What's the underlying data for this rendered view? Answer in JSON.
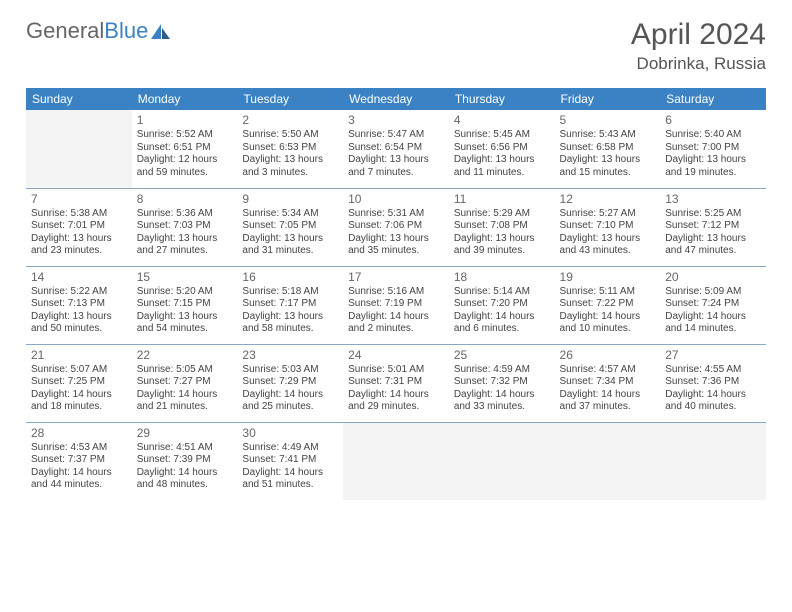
{
  "brand": {
    "part1": "General",
    "part2": "Blue"
  },
  "title": "April 2024",
  "location": "Dobrinka, Russia",
  "colors": {
    "header_bg": "#3b82c4",
    "header_text": "#ffffff",
    "border": "#8aa8c2",
    "daynum": "#666666",
    "info_text": "#444444",
    "empty_bg": "#f4f4f4",
    "page_bg": "#ffffff",
    "logo_gray": "#666666",
    "logo_blue": "#3b82c4"
  },
  "weekdays": [
    "Sunday",
    "Monday",
    "Tuesday",
    "Wednesday",
    "Thursday",
    "Friday",
    "Saturday"
  ],
  "weeks": [
    [
      {
        "empty": true
      },
      {
        "d": "1",
        "sr": "5:52 AM",
        "ss": "6:51 PM",
        "dl": "12 hours and 59 minutes."
      },
      {
        "d": "2",
        "sr": "5:50 AM",
        "ss": "6:53 PM",
        "dl": "13 hours and 3 minutes."
      },
      {
        "d": "3",
        "sr": "5:47 AM",
        "ss": "6:54 PM",
        "dl": "13 hours and 7 minutes."
      },
      {
        "d": "4",
        "sr": "5:45 AM",
        "ss": "6:56 PM",
        "dl": "13 hours and 11 minutes."
      },
      {
        "d": "5",
        "sr": "5:43 AM",
        "ss": "6:58 PM",
        "dl": "13 hours and 15 minutes."
      },
      {
        "d": "6",
        "sr": "5:40 AM",
        "ss": "7:00 PM",
        "dl": "13 hours and 19 minutes."
      }
    ],
    [
      {
        "d": "7",
        "sr": "5:38 AM",
        "ss": "7:01 PM",
        "dl": "13 hours and 23 minutes."
      },
      {
        "d": "8",
        "sr": "5:36 AM",
        "ss": "7:03 PM",
        "dl": "13 hours and 27 minutes."
      },
      {
        "d": "9",
        "sr": "5:34 AM",
        "ss": "7:05 PM",
        "dl": "13 hours and 31 minutes."
      },
      {
        "d": "10",
        "sr": "5:31 AM",
        "ss": "7:06 PM",
        "dl": "13 hours and 35 minutes."
      },
      {
        "d": "11",
        "sr": "5:29 AM",
        "ss": "7:08 PM",
        "dl": "13 hours and 39 minutes."
      },
      {
        "d": "12",
        "sr": "5:27 AM",
        "ss": "7:10 PM",
        "dl": "13 hours and 43 minutes."
      },
      {
        "d": "13",
        "sr": "5:25 AM",
        "ss": "7:12 PM",
        "dl": "13 hours and 47 minutes."
      }
    ],
    [
      {
        "d": "14",
        "sr": "5:22 AM",
        "ss": "7:13 PM",
        "dl": "13 hours and 50 minutes."
      },
      {
        "d": "15",
        "sr": "5:20 AM",
        "ss": "7:15 PM",
        "dl": "13 hours and 54 minutes."
      },
      {
        "d": "16",
        "sr": "5:18 AM",
        "ss": "7:17 PM",
        "dl": "13 hours and 58 minutes."
      },
      {
        "d": "17",
        "sr": "5:16 AM",
        "ss": "7:19 PM",
        "dl": "14 hours and 2 minutes."
      },
      {
        "d": "18",
        "sr": "5:14 AM",
        "ss": "7:20 PM",
        "dl": "14 hours and 6 minutes."
      },
      {
        "d": "19",
        "sr": "5:11 AM",
        "ss": "7:22 PM",
        "dl": "14 hours and 10 minutes."
      },
      {
        "d": "20",
        "sr": "5:09 AM",
        "ss": "7:24 PM",
        "dl": "14 hours and 14 minutes."
      }
    ],
    [
      {
        "d": "21",
        "sr": "5:07 AM",
        "ss": "7:25 PM",
        "dl": "14 hours and 18 minutes."
      },
      {
        "d": "22",
        "sr": "5:05 AM",
        "ss": "7:27 PM",
        "dl": "14 hours and 21 minutes."
      },
      {
        "d": "23",
        "sr": "5:03 AM",
        "ss": "7:29 PM",
        "dl": "14 hours and 25 minutes."
      },
      {
        "d": "24",
        "sr": "5:01 AM",
        "ss": "7:31 PM",
        "dl": "14 hours and 29 minutes."
      },
      {
        "d": "25",
        "sr": "4:59 AM",
        "ss": "7:32 PM",
        "dl": "14 hours and 33 minutes."
      },
      {
        "d": "26",
        "sr": "4:57 AM",
        "ss": "7:34 PM",
        "dl": "14 hours and 37 minutes."
      },
      {
        "d": "27",
        "sr": "4:55 AM",
        "ss": "7:36 PM",
        "dl": "14 hours and 40 minutes."
      }
    ],
    [
      {
        "d": "28",
        "sr": "4:53 AM",
        "ss": "7:37 PM",
        "dl": "14 hours and 44 minutes."
      },
      {
        "d": "29",
        "sr": "4:51 AM",
        "ss": "7:39 PM",
        "dl": "14 hours and 48 minutes."
      },
      {
        "d": "30",
        "sr": "4:49 AM",
        "ss": "7:41 PM",
        "dl": "14 hours and 51 minutes."
      },
      {
        "empty": true
      },
      {
        "empty": true
      },
      {
        "empty": true
      },
      {
        "empty": true
      }
    ]
  ],
  "labels": {
    "sunrise": "Sunrise:",
    "sunset": "Sunset:",
    "daylight": "Daylight:"
  }
}
